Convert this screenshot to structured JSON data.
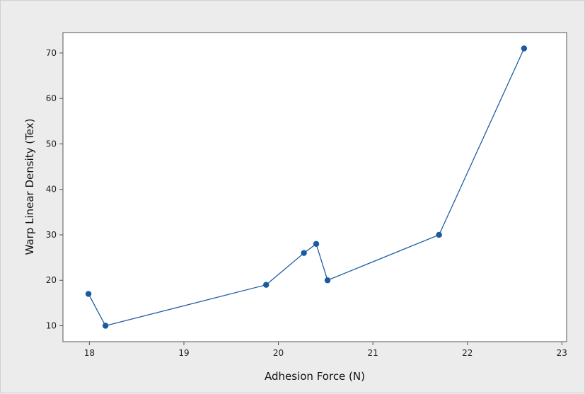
{
  "chart_data": {
    "type": "line",
    "title": "",
    "xlabel": "Adhesion Force (N)",
    "ylabel": "Warp Linear Density (Tex)",
    "xlim": [
      17.72,
      23.05
    ],
    "ylim": [
      6.5,
      74.5
    ],
    "xticks": [
      18,
      19,
      20,
      21,
      22,
      23
    ],
    "yticks": [
      10,
      20,
      30,
      40,
      50,
      60,
      70
    ],
    "grid": false,
    "legend": "none",
    "series_color": "#1f5fa6",
    "marker_color": "#1a5aa0",
    "series": [
      {
        "x": [
          17.99,
          18.17,
          19.87,
          20.27,
          20.4,
          20.52,
          21.7,
          22.6
        ],
        "y": [
          17,
          10,
          19,
          26,
          28,
          20,
          30,
          71
        ]
      }
    ]
  }
}
